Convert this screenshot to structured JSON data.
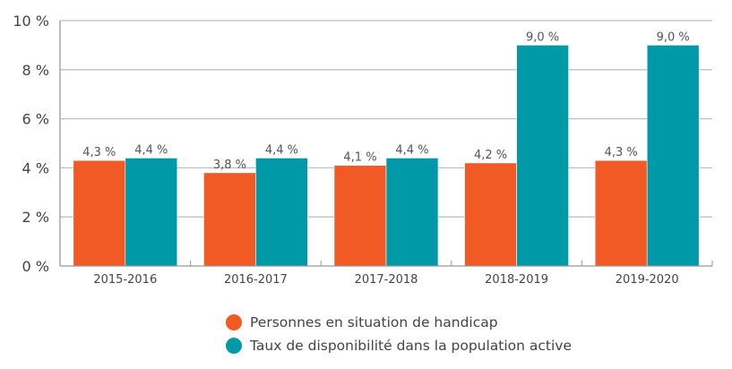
{
  "chart_data": {
    "type": "bar",
    "title": "",
    "xlabel": "",
    "ylabel": "",
    "categories": [
      "2015-2016",
      "2016-2017",
      "2017-2018",
      "2018-2019",
      "2019-2020"
    ],
    "series": [
      {
        "name": "Personnes en situation de handicap",
        "color": "#F15A24",
        "values": [
          4.3,
          3.8,
          4.1,
          4.2,
          4.3
        ],
        "labels": [
          "4,3 %",
          "3,8 %",
          "4,1 %",
          "4,2 %",
          "4,3 %"
        ]
      },
      {
        "name": "Taux de disponibilité dans la population active",
        "color": "#0099A8",
        "values": [
          4.4,
          4.4,
          4.4,
          9.0,
          9.0
        ],
        "labels": [
          "4,4 %",
          "4,4 %",
          "4,4 %",
          "9,0 %",
          "9,0 %"
        ]
      }
    ],
    "ylim": [
      0,
      10
    ],
    "yticks": [
      0,
      2,
      4,
      6,
      8,
      10
    ],
    "ytick_labels": [
      "0 %",
      "2 %",
      "4 %",
      "6 %",
      "8 %",
      "10 %"
    ],
    "grid": true,
    "legend_position": "bottom-center"
  }
}
